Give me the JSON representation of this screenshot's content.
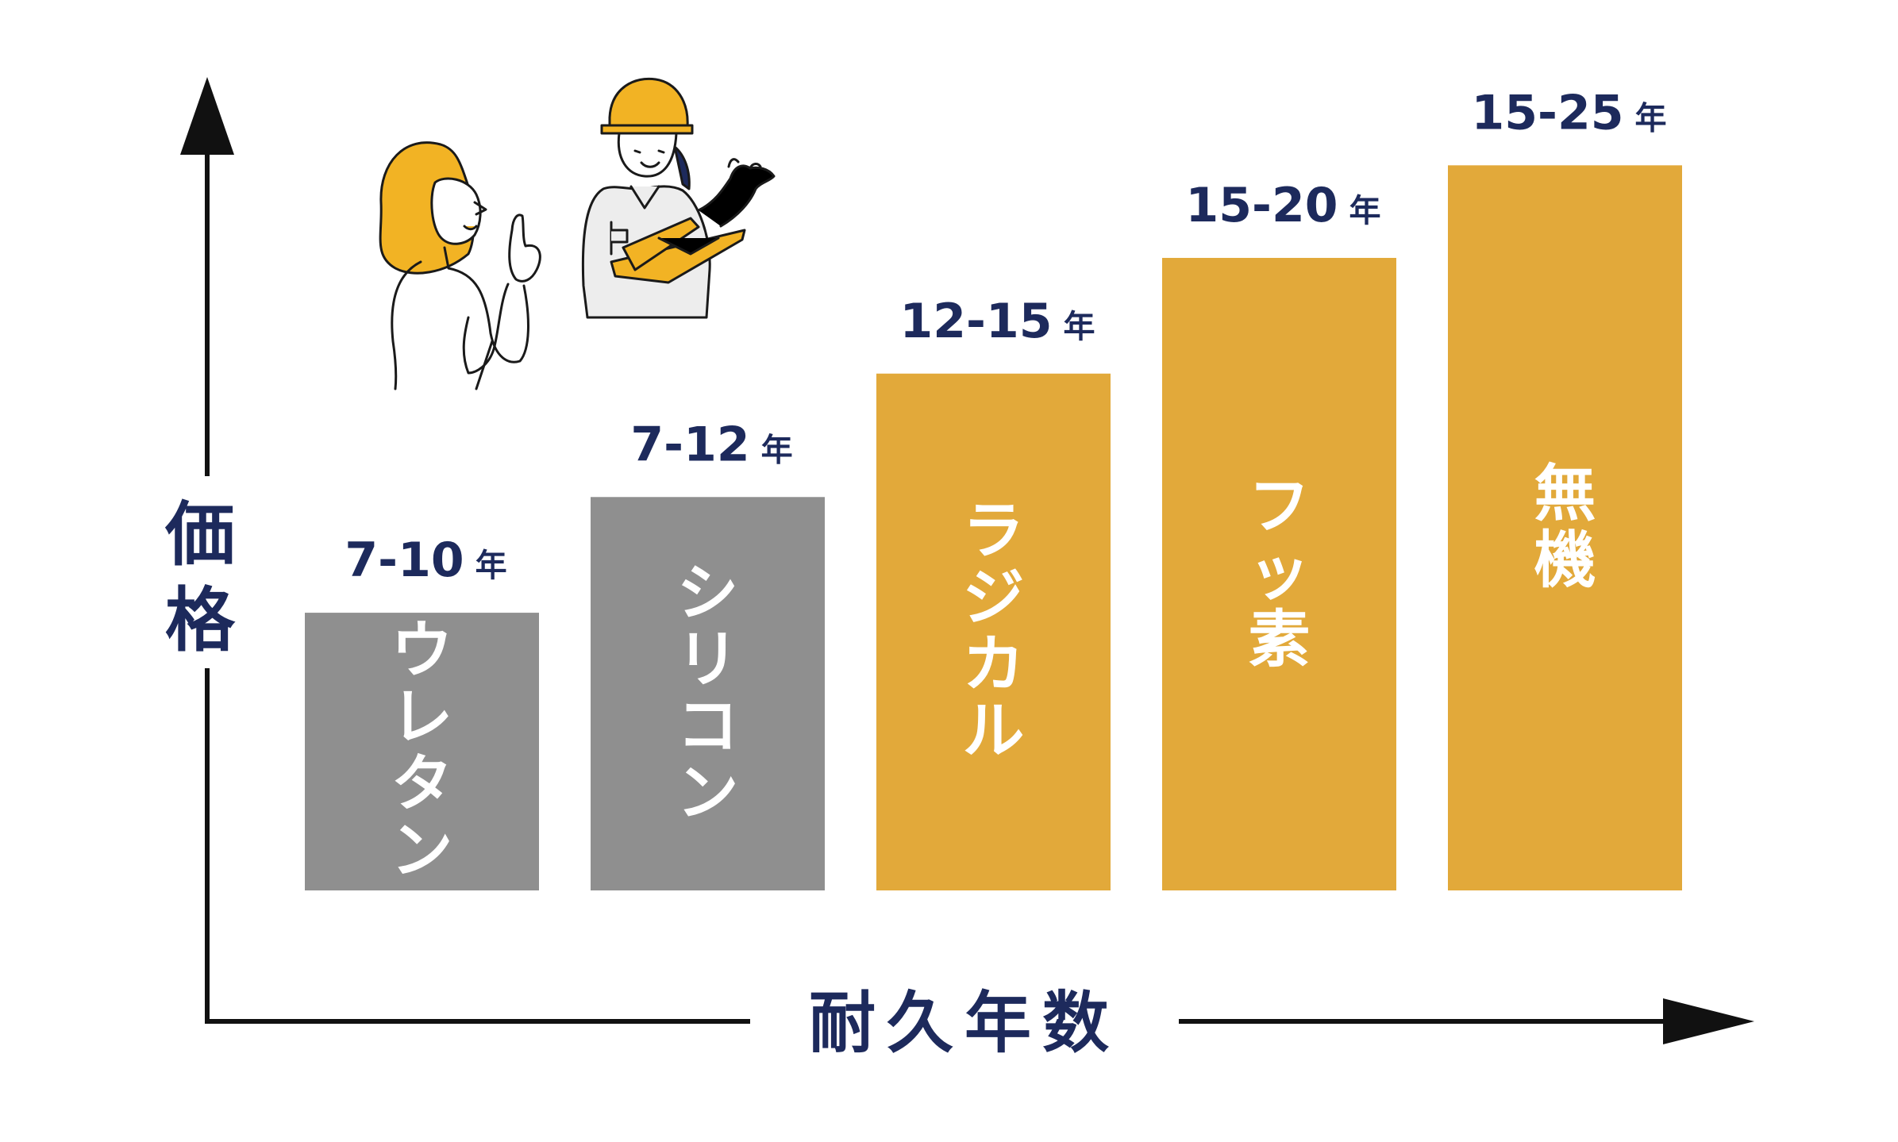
{
  "chart_data": {
    "type": "bar",
    "xlabel": "耐久年数",
    "ylabel": "価格",
    "categories": [
      "ウレタン",
      "シリコン",
      "ラジカル",
      "フッ素",
      "無機"
    ],
    "durability_labels": [
      "7-10",
      "7-12",
      "12-15",
      "15-20",
      "15-25"
    ],
    "unit": "年",
    "durability_min": [
      7,
      7,
      12,
      15,
      15
    ],
    "durability_max": [
      10,
      12,
      15,
      20,
      25
    ],
    "relative_price": [
      0.36,
      0.51,
      0.67,
      0.82,
      0.94
    ],
    "bar_colors": [
      "#8f8f8f",
      "#8f8f8f",
      "#e2a93a",
      "#e2a93a",
      "#e2a93a"
    ],
    "axis_color": "#111111",
    "label_color": "#1d2a5c",
    "grid": false,
    "legend": "none"
  },
  "illustration": {
    "woman_icon": "woman-talking-icon",
    "worker_icon": "construction-worker-icon",
    "helmet_color": "#f2b324",
    "hair_color": "#f2b324"
  }
}
